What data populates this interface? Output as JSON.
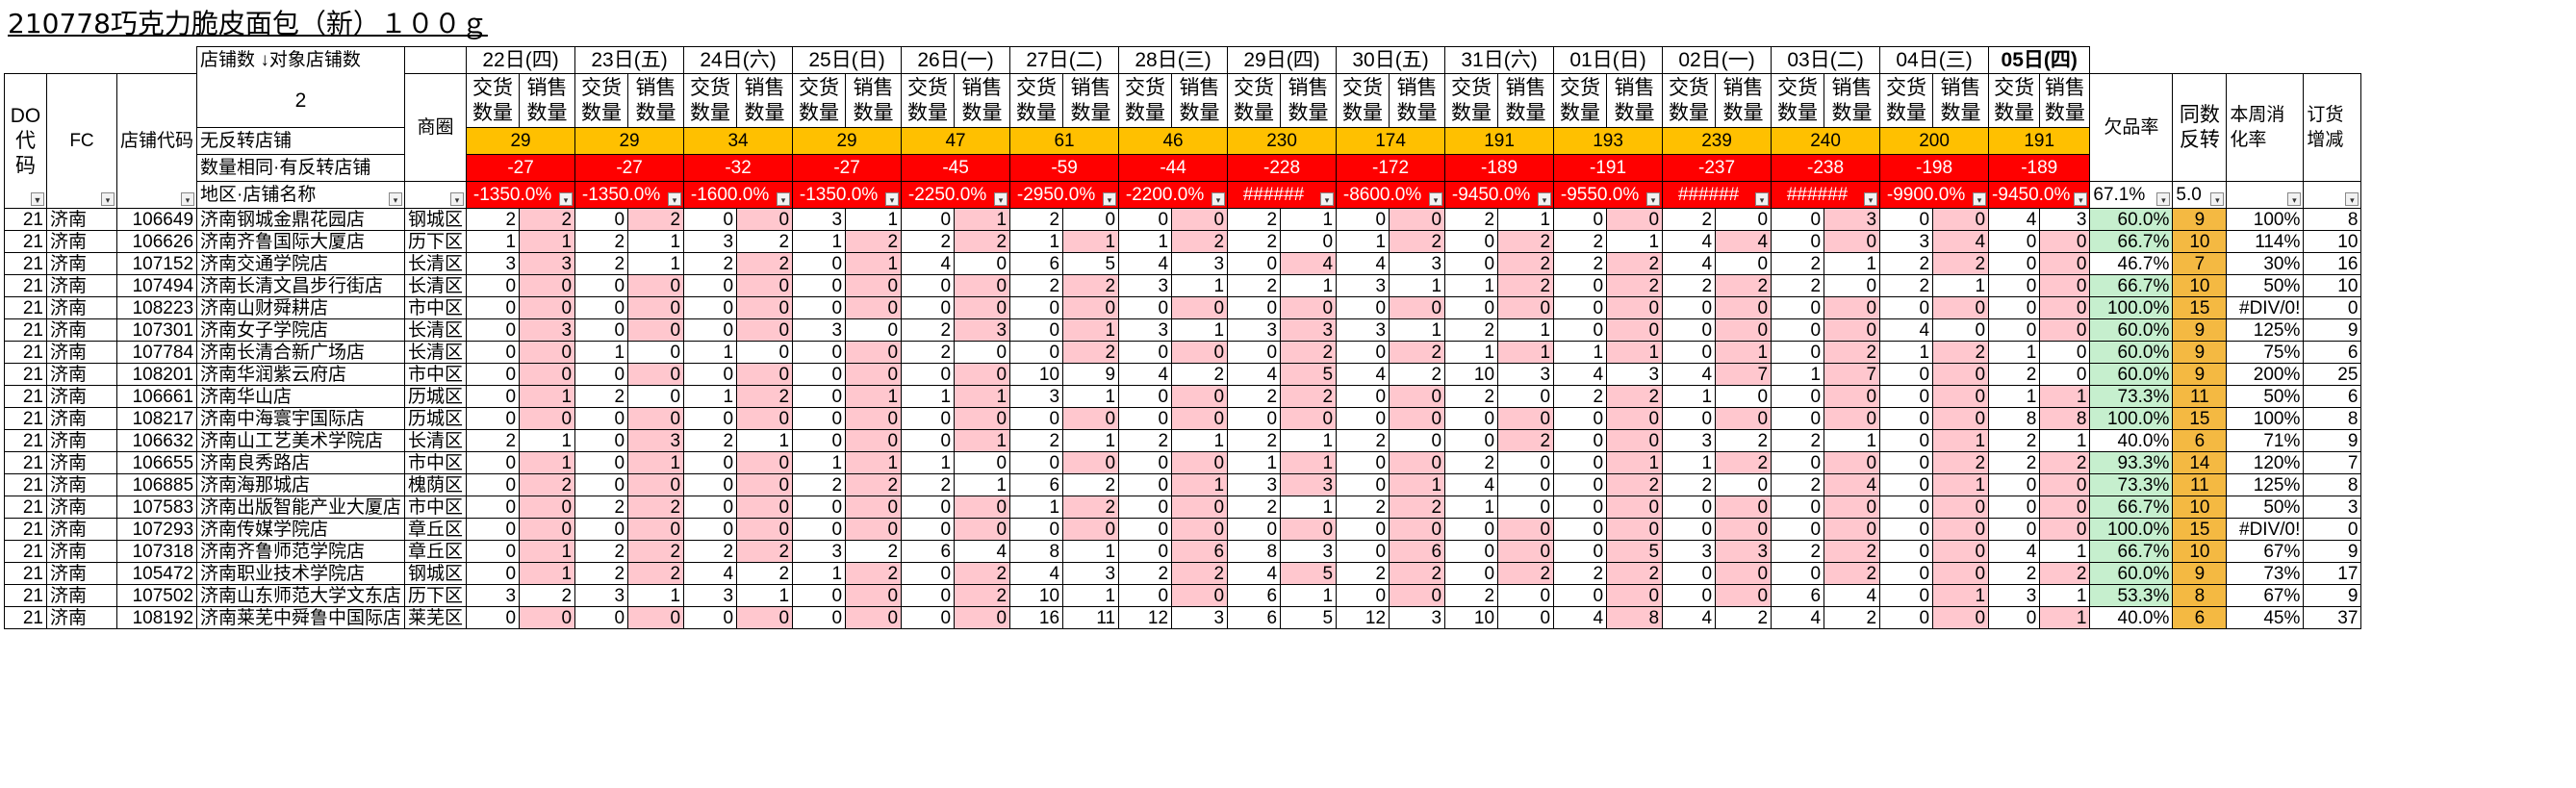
{
  "title": "210778巧克力脆皮面包（新）１００ｇ",
  "header": {
    "do_code": "DO代码",
    "fc": "FC",
    "store_code": "店铺代码",
    "store_count_label": "店铺数",
    "target_store_label": "↓对象店铺数",
    "target_store_value": "2",
    "district": "商圈",
    "no_rebound": "无反转店铺",
    "same_qty_rebound": "数量相同·有反转店铺",
    "region_store": "地区·店铺名称",
    "delivery_qty": "交货数量",
    "sales_qty": "销售数量",
    "short_rate": "欠品率",
    "same_rebound": "同数反转",
    "weekly_rate": "本周消化率",
    "order_change": "订货增减",
    "short_rate_filter": "67.1%",
    "same_rebound_filter": "5.0",
    "filter_glyph": "▾",
    "filter_active_glyph": "▼"
  },
  "dates": [
    "22日(四)",
    "23日(五)",
    "24日(六)",
    "25日(日)",
    "26日(一)",
    "27日(二)",
    "28日(三)",
    "29日(四)",
    "30日(五)",
    "31日(六)",
    "01日(日)",
    "02日(一)",
    "03日(二)",
    "04日(三)",
    "05日(四)"
  ],
  "no_rebound_values": [
    "29",
    "29",
    "34",
    "29",
    "47",
    "61",
    "46",
    "230",
    "174",
    "191",
    "193",
    "239",
    "240",
    "200",
    "191"
  ],
  "same_qty_values": [
    "-27",
    "-27",
    "-32",
    "-27",
    "-45",
    "-59",
    "-44",
    "-228",
    "-172",
    "-189",
    "-191",
    "-237",
    "-238",
    "-198",
    "-189"
  ],
  "area_values": [
    "-1350.0%",
    "-1350.0%",
    "-1600.0%",
    "-1350.0%",
    "-2250.0%",
    "-2950.0%",
    "-2200.0%",
    "######",
    "-8600.0%",
    "-9450.0%",
    "-9550.0%",
    "######",
    "######",
    "-9900.0%",
    "-9450.0%"
  ],
  "rows": [
    {
      "do": "21",
      "fc": "济南",
      "code": "106649",
      "name": "济南钢城金鼎花园店",
      "district": "钢城区",
      "pairs": [
        [
          2,
          2
        ],
        [
          0,
          2
        ],
        [
          0,
          0
        ],
        [
          3,
          1
        ],
        [
          0,
          1
        ],
        [
          2,
          0
        ],
        [
          0,
          0
        ],
        [
          2,
          1
        ],
        [
          0,
          0
        ],
        [
          2,
          1
        ],
        [
          0,
          0
        ],
        [
          2,
          0
        ],
        [
          0,
          3
        ],
        [
          0,
          0
        ],
        [
          4,
          3
        ]
      ],
      "rate": "60.0%",
      "rate_cls": "grn",
      "same": "9",
      "weekly": "100%",
      "order": "8"
    },
    {
      "do": "21",
      "fc": "济南",
      "code": "106626",
      "name": "济南齐鲁国际大厦店",
      "district": "历下区",
      "pairs": [
        [
          1,
          1
        ],
        [
          2,
          1
        ],
        [
          3,
          2
        ],
        [
          1,
          2
        ],
        [
          2,
          2
        ],
        [
          1,
          1
        ],
        [
          1,
          2
        ],
        [
          2,
          0
        ],
        [
          1,
          2
        ],
        [
          0,
          2
        ],
        [
          2,
          1
        ],
        [
          4,
          4
        ],
        [
          0,
          0
        ],
        [
          3,
          4
        ],
        [
          0,
          0
        ]
      ],
      "rate": "66.7%",
      "rate_cls": "grn",
      "same": "10",
      "weekly": "114%",
      "order": "10"
    },
    {
      "do": "21",
      "fc": "济南",
      "code": "107152",
      "name": "济南交通学院店",
      "district": "长清区",
      "pairs": [
        [
          3,
          3
        ],
        [
          2,
          1
        ],
        [
          2,
          2
        ],
        [
          0,
          1
        ],
        [
          4,
          0
        ],
        [
          6,
          5
        ],
        [
          4,
          3
        ],
        [
          0,
          4
        ],
        [
          4,
          3
        ],
        [
          0,
          2
        ],
        [
          2,
          2
        ],
        [
          4,
          0
        ],
        [
          2,
          1
        ],
        [
          2,
          2
        ],
        [
          0,
          0
        ]
      ],
      "rate": "46.7%",
      "rate_cls": "",
      "same": "7",
      "weekly": "30%",
      "order": "16"
    },
    {
      "do": "21",
      "fc": "济南",
      "code": "107494",
      "name": "济南长清文昌步行街店",
      "district": "长清区",
      "pairs": [
        [
          0,
          0
        ],
        [
          0,
          0
        ],
        [
          0,
          0
        ],
        [
          0,
          0
        ],
        [
          0,
          0
        ],
        [
          2,
          2
        ],
        [
          3,
          1
        ],
        [
          2,
          1
        ],
        [
          3,
          1
        ],
        [
          1,
          2
        ],
        [
          0,
          2
        ],
        [
          2,
          2
        ],
        [
          2,
          0
        ],
        [
          2,
          1
        ],
        [
          0,
          0
        ]
      ],
      "rate": "66.7%",
      "rate_cls": "grn",
      "same": "10",
      "weekly": "50%",
      "order": "10"
    },
    {
      "do": "21",
      "fc": "济南",
      "code": "108223",
      "name": "济南山财舜耕店",
      "district": "市中区",
      "pairs": [
        [
          0,
          0
        ],
        [
          0,
          0
        ],
        [
          0,
          0
        ],
        [
          0,
          0
        ],
        [
          0,
          0
        ],
        [
          0,
          0
        ],
        [
          0,
          0
        ],
        [
          0,
          0
        ],
        [
          0,
          0
        ],
        [
          0,
          0
        ],
        [
          0,
          0
        ],
        [
          0,
          0
        ],
        [
          0,
          0
        ],
        [
          0,
          0
        ],
        [
          0,
          0
        ]
      ],
      "rate": "100.0%",
      "rate_cls": "grn",
      "same": "15",
      "weekly": "#DIV/0!",
      "order": "0"
    },
    {
      "do": "21",
      "fc": "济南",
      "code": "107301",
      "name": "济南女子学院店",
      "district": "长清区",
      "pairs": [
        [
          0,
          3
        ],
        [
          0,
          0
        ],
        [
          0,
          0
        ],
        [
          3,
          0
        ],
        [
          2,
          3
        ],
        [
          0,
          1
        ],
        [
          3,
          1
        ],
        [
          3,
          3
        ],
        [
          3,
          1
        ],
        [
          2,
          1
        ],
        [
          0,
          0
        ],
        [
          0,
          0
        ],
        [
          0,
          0
        ],
        [
          4,
          0
        ],
        [
          0,
          0
        ]
      ],
      "rate": "60.0%",
      "rate_cls": "grn",
      "same": "9",
      "weekly": "125%",
      "order": "9"
    },
    {
      "do": "21",
      "fc": "济南",
      "code": "107784",
      "name": "济南长清合新广场店",
      "district": "长清区",
      "pairs": [
        [
          0,
          0
        ],
        [
          1,
          0
        ],
        [
          1,
          0
        ],
        [
          0,
          0
        ],
        [
          2,
          0
        ],
        [
          0,
          2
        ],
        [
          0,
          0
        ],
        [
          0,
          2
        ],
        [
          0,
          2
        ],
        [
          1,
          1
        ],
        [
          1,
          1
        ],
        [
          0,
          1
        ],
        [
          0,
          2
        ],
        [
          1,
          2
        ],
        [
          1,
          0
        ]
      ],
      "rate": "60.0%",
      "rate_cls": "grn",
      "same": "9",
      "weekly": "75%",
      "order": "6"
    },
    {
      "do": "21",
      "fc": "济南",
      "code": "108201",
      "name": "济南华润紫云府店",
      "district": "市中区",
      "pairs": [
        [
          0,
          0
        ],
        [
          0,
          0
        ],
        [
          0,
          0
        ],
        [
          0,
          0
        ],
        [
          0,
          0
        ],
        [
          10,
          9
        ],
        [
          4,
          2
        ],
        [
          4,
          5
        ],
        [
          4,
          2
        ],
        [
          10,
          3
        ],
        [
          4,
          3
        ],
        [
          4,
          7
        ],
        [
          1,
          7
        ],
        [
          0,
          0
        ],
        [
          2,
          0
        ]
      ],
      "rate": "60.0%",
      "rate_cls": "grn",
      "same": "9",
      "weekly": "200%",
      "order": "25"
    },
    {
      "do": "21",
      "fc": "济南",
      "code": "106661",
      "name": "济南华山店",
      "district": "历城区",
      "pairs": [
        [
          0,
          1
        ],
        [
          2,
          0
        ],
        [
          1,
          2
        ],
        [
          0,
          1
        ],
        [
          1,
          1
        ],
        [
          3,
          1
        ],
        [
          0,
          0
        ],
        [
          2,
          2
        ],
        [
          0,
          0
        ],
        [
          2,
          0
        ],
        [
          2,
          2
        ],
        [
          1,
          0
        ],
        [
          0,
          0
        ],
        [
          0,
          0
        ],
        [
          1,
          1
        ]
      ],
      "rate": "73.3%",
      "rate_cls": "grn",
      "same": "11",
      "weekly": "50%",
      "order": "6"
    },
    {
      "do": "21",
      "fc": "济南",
      "code": "108217",
      "name": "济南中海寰宇国际店",
      "district": "历城区",
      "pairs": [
        [
          0,
          0
        ],
        [
          0,
          0
        ],
        [
          0,
          0
        ],
        [
          0,
          0
        ],
        [
          0,
          0
        ],
        [
          0,
          0
        ],
        [
          0,
          0
        ],
        [
          0,
          0
        ],
        [
          0,
          0
        ],
        [
          0,
          0
        ],
        [
          0,
          0
        ],
        [
          0,
          0
        ],
        [
          0,
          0
        ],
        [
          0,
          0
        ],
        [
          8,
          8
        ]
      ],
      "rate": "100.0%",
      "rate_cls": "grn",
      "same": "15",
      "weekly": "100%",
      "order": "8"
    },
    {
      "do": "21",
      "fc": "济南",
      "code": "106632",
      "name": "济南山工艺美术学院店",
      "district": "长清区",
      "pairs": [
        [
          2,
          1
        ],
        [
          0,
          3
        ],
        [
          2,
          1
        ],
        [
          0,
          0
        ],
        [
          0,
          1
        ],
        [
          2,
          1
        ],
        [
          2,
          1
        ],
        [
          2,
          1
        ],
        [
          2,
          0
        ],
        [
          0,
          2
        ],
        [
          0,
          0
        ],
        [
          3,
          2
        ],
        [
          2,
          1
        ],
        [
          0,
          1
        ],
        [
          2,
          1
        ]
      ],
      "rate": "40.0%",
      "rate_cls": "",
      "same": "6",
      "weekly": "71%",
      "order": "9"
    },
    {
      "do": "21",
      "fc": "济南",
      "code": "106655",
      "name": "济南良秀路店",
      "district": "市中区",
      "pairs": [
        [
          0,
          1
        ],
        [
          0,
          1
        ],
        [
          0,
          0
        ],
        [
          1,
          1
        ],
        [
          1,
          0
        ],
        [
          0,
          0
        ],
        [
          0,
          0
        ],
        [
          1,
          1
        ],
        [
          0,
          0
        ],
        [
          2,
          0
        ],
        [
          0,
          1
        ],
        [
          1,
          2
        ],
        [
          0,
          0
        ],
        [
          0,
          2
        ],
        [
          2,
          2
        ]
      ],
      "rate": "93.3%",
      "rate_cls": "grn",
      "same": "14",
      "weekly": "120%",
      "order": "7"
    },
    {
      "do": "21",
      "fc": "济南",
      "code": "106885",
      "name": "济南海那城店",
      "district": "槐荫区",
      "pairs": [
        [
          0,
          2
        ],
        [
          0,
          0
        ],
        [
          0,
          0
        ],
        [
          2,
          2
        ],
        [
          2,
          1
        ],
        [
          6,
          2
        ],
        [
          0,
          1
        ],
        [
          3,
          3
        ],
        [
          0,
          1
        ],
        [
          4,
          0
        ],
        [
          0,
          2
        ],
        [
          2,
          0
        ],
        [
          2,
          4
        ],
        [
          0,
          1
        ],
        [
          0,
          0
        ]
      ],
      "rate": "73.3%",
      "rate_cls": "grn",
      "same": "11",
      "weekly": "125%",
      "order": "8"
    },
    {
      "do": "21",
      "fc": "济南",
      "code": "107583",
      "name": "济南出版智能产业大厦店",
      "district": "市中区",
      "pairs": [
        [
          0,
          0
        ],
        [
          2,
          2
        ],
        [
          0,
          0
        ],
        [
          0,
          0
        ],
        [
          0,
          0
        ],
        [
          1,
          2
        ],
        [
          0,
          0
        ],
        [
          2,
          1
        ],
        [
          2,
          2
        ],
        [
          1,
          0
        ],
        [
          0,
          0
        ],
        [
          0,
          0
        ],
        [
          0,
          0
        ],
        [
          0,
          0
        ],
        [
          0,
          0
        ]
      ],
      "rate": "66.7%",
      "rate_cls": "grn",
      "same": "10",
      "weekly": "50%",
      "order": "3"
    },
    {
      "do": "21",
      "fc": "济南",
      "code": "107293",
      "name": "济南传媒学院店",
      "district": "章丘区",
      "pairs": [
        [
          0,
          0
        ],
        [
          0,
          0
        ],
        [
          0,
          0
        ],
        [
          0,
          0
        ],
        [
          0,
          0
        ],
        [
          0,
          0
        ],
        [
          0,
          0
        ],
        [
          0,
          0
        ],
        [
          0,
          0
        ],
        [
          0,
          0
        ],
        [
          0,
          0
        ],
        [
          0,
          0
        ],
        [
          0,
          0
        ],
        [
          0,
          0
        ],
        [
          0,
          0
        ]
      ],
      "rate": "100.0%",
      "rate_cls": "grn",
      "same": "15",
      "weekly": "#DIV/0!",
      "order": "0"
    },
    {
      "do": "21",
      "fc": "济南",
      "code": "107318",
      "name": "济南齐鲁师范学院店",
      "district": "章丘区",
      "pairs": [
        [
          0,
          1
        ],
        [
          2,
          2
        ],
        [
          2,
          2
        ],
        [
          3,
          2
        ],
        [
          6,
          4
        ],
        [
          8,
          1
        ],
        [
          0,
          6
        ],
        [
          8,
          3
        ],
        [
          0,
          6
        ],
        [
          0,
          0
        ],
        [
          0,
          5
        ],
        [
          3,
          3
        ],
        [
          2,
          2
        ],
        [
          0,
          0
        ],
        [
          4,
          1
        ]
      ],
      "rate": "66.7%",
      "rate_cls": "grn",
      "same": "10",
      "weekly": "67%",
      "order": "9"
    },
    {
      "do": "21",
      "fc": "济南",
      "code": "105472",
      "name": "济南职业技术学院店",
      "district": "钢城区",
      "pairs": [
        [
          0,
          1
        ],
        [
          2,
          2
        ],
        [
          4,
          2
        ],
        [
          1,
          2
        ],
        [
          0,
          2
        ],
        [
          4,
          3
        ],
        [
          2,
          2
        ],
        [
          4,
          5
        ],
        [
          2,
          2
        ],
        [
          0,
          2
        ],
        [
          2,
          2
        ],
        [
          0,
          0
        ],
        [
          0,
          2
        ],
        [
          0,
          0
        ],
        [
          2,
          2
        ]
      ],
      "rate": "60.0%",
      "rate_cls": "grn",
      "same": "9",
      "weekly": "73%",
      "order": "17"
    },
    {
      "do": "21",
      "fc": "济南",
      "code": "107502",
      "name": "济南山东师范大学文东店",
      "district": "历下区",
      "pairs": [
        [
          3,
          2
        ],
        [
          3,
          1
        ],
        [
          3,
          1
        ],
        [
          0,
          0
        ],
        [
          0,
          2
        ],
        [
          10,
          1
        ],
        [
          0,
          0
        ],
        [
          6,
          1
        ],
        [
          0,
          0
        ],
        [
          2,
          0
        ],
        [
          0,
          0
        ],
        [
          0,
          0
        ],
        [
          6,
          4
        ],
        [
          0,
          1
        ],
        [
          3,
          1
        ]
      ],
      "rate": "53.3%",
      "rate_cls": "grn",
      "same": "8",
      "weekly": "67%",
      "order": "9"
    },
    {
      "do": "21",
      "fc": "济南",
      "code": "108192",
      "name": "济南莱芜中舜鲁中国际店",
      "district": "莱芜区",
      "pairs": [
        [
          0,
          0
        ],
        [
          0,
          0
        ],
        [
          0,
          0
        ],
        [
          0,
          0
        ],
        [
          0,
          0
        ],
        [
          16,
          11
        ],
        [
          12,
          3
        ],
        [
          6,
          5
        ],
        [
          12,
          3
        ],
        [
          10,
          0
        ],
        [
          4,
          8
        ],
        [
          4,
          2
        ],
        [
          4,
          2
        ],
        [
          0,
          0
        ],
        [
          0,
          1
        ]
      ],
      "rate": "40.0%",
      "rate_cls": "",
      "same": "6",
      "weekly": "45%",
      "order": "37"
    }
  ]
}
